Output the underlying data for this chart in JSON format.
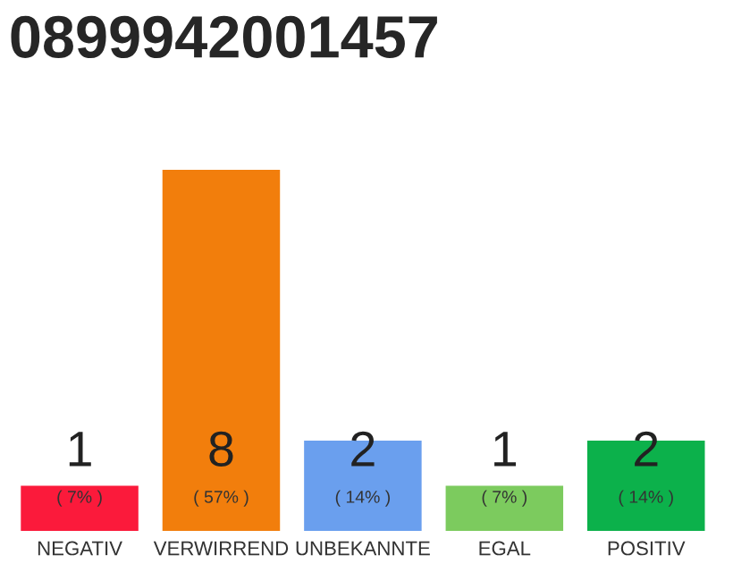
{
  "chart_data": {
    "type": "bar",
    "title": "0899942001457",
    "categories": [
      "NEGATIV",
      "VERWIRREND",
      "UNBEKANNTE",
      "EGAL",
      "POSITIV"
    ],
    "values": [
      1,
      8,
      2,
      1,
      2
    ],
    "colors": [
      "#fb1a3b",
      "#f27e0c",
      "#6a9fee",
      "#7ccb5e",
      "#0cb14b"
    ],
    "data_labels": true,
    "annotations": [
      "( 7% )",
      "( 57% )",
      "( 14% )",
      "( 7% )",
      "( 14% )"
    ],
    "grid": false,
    "legend": false
  }
}
